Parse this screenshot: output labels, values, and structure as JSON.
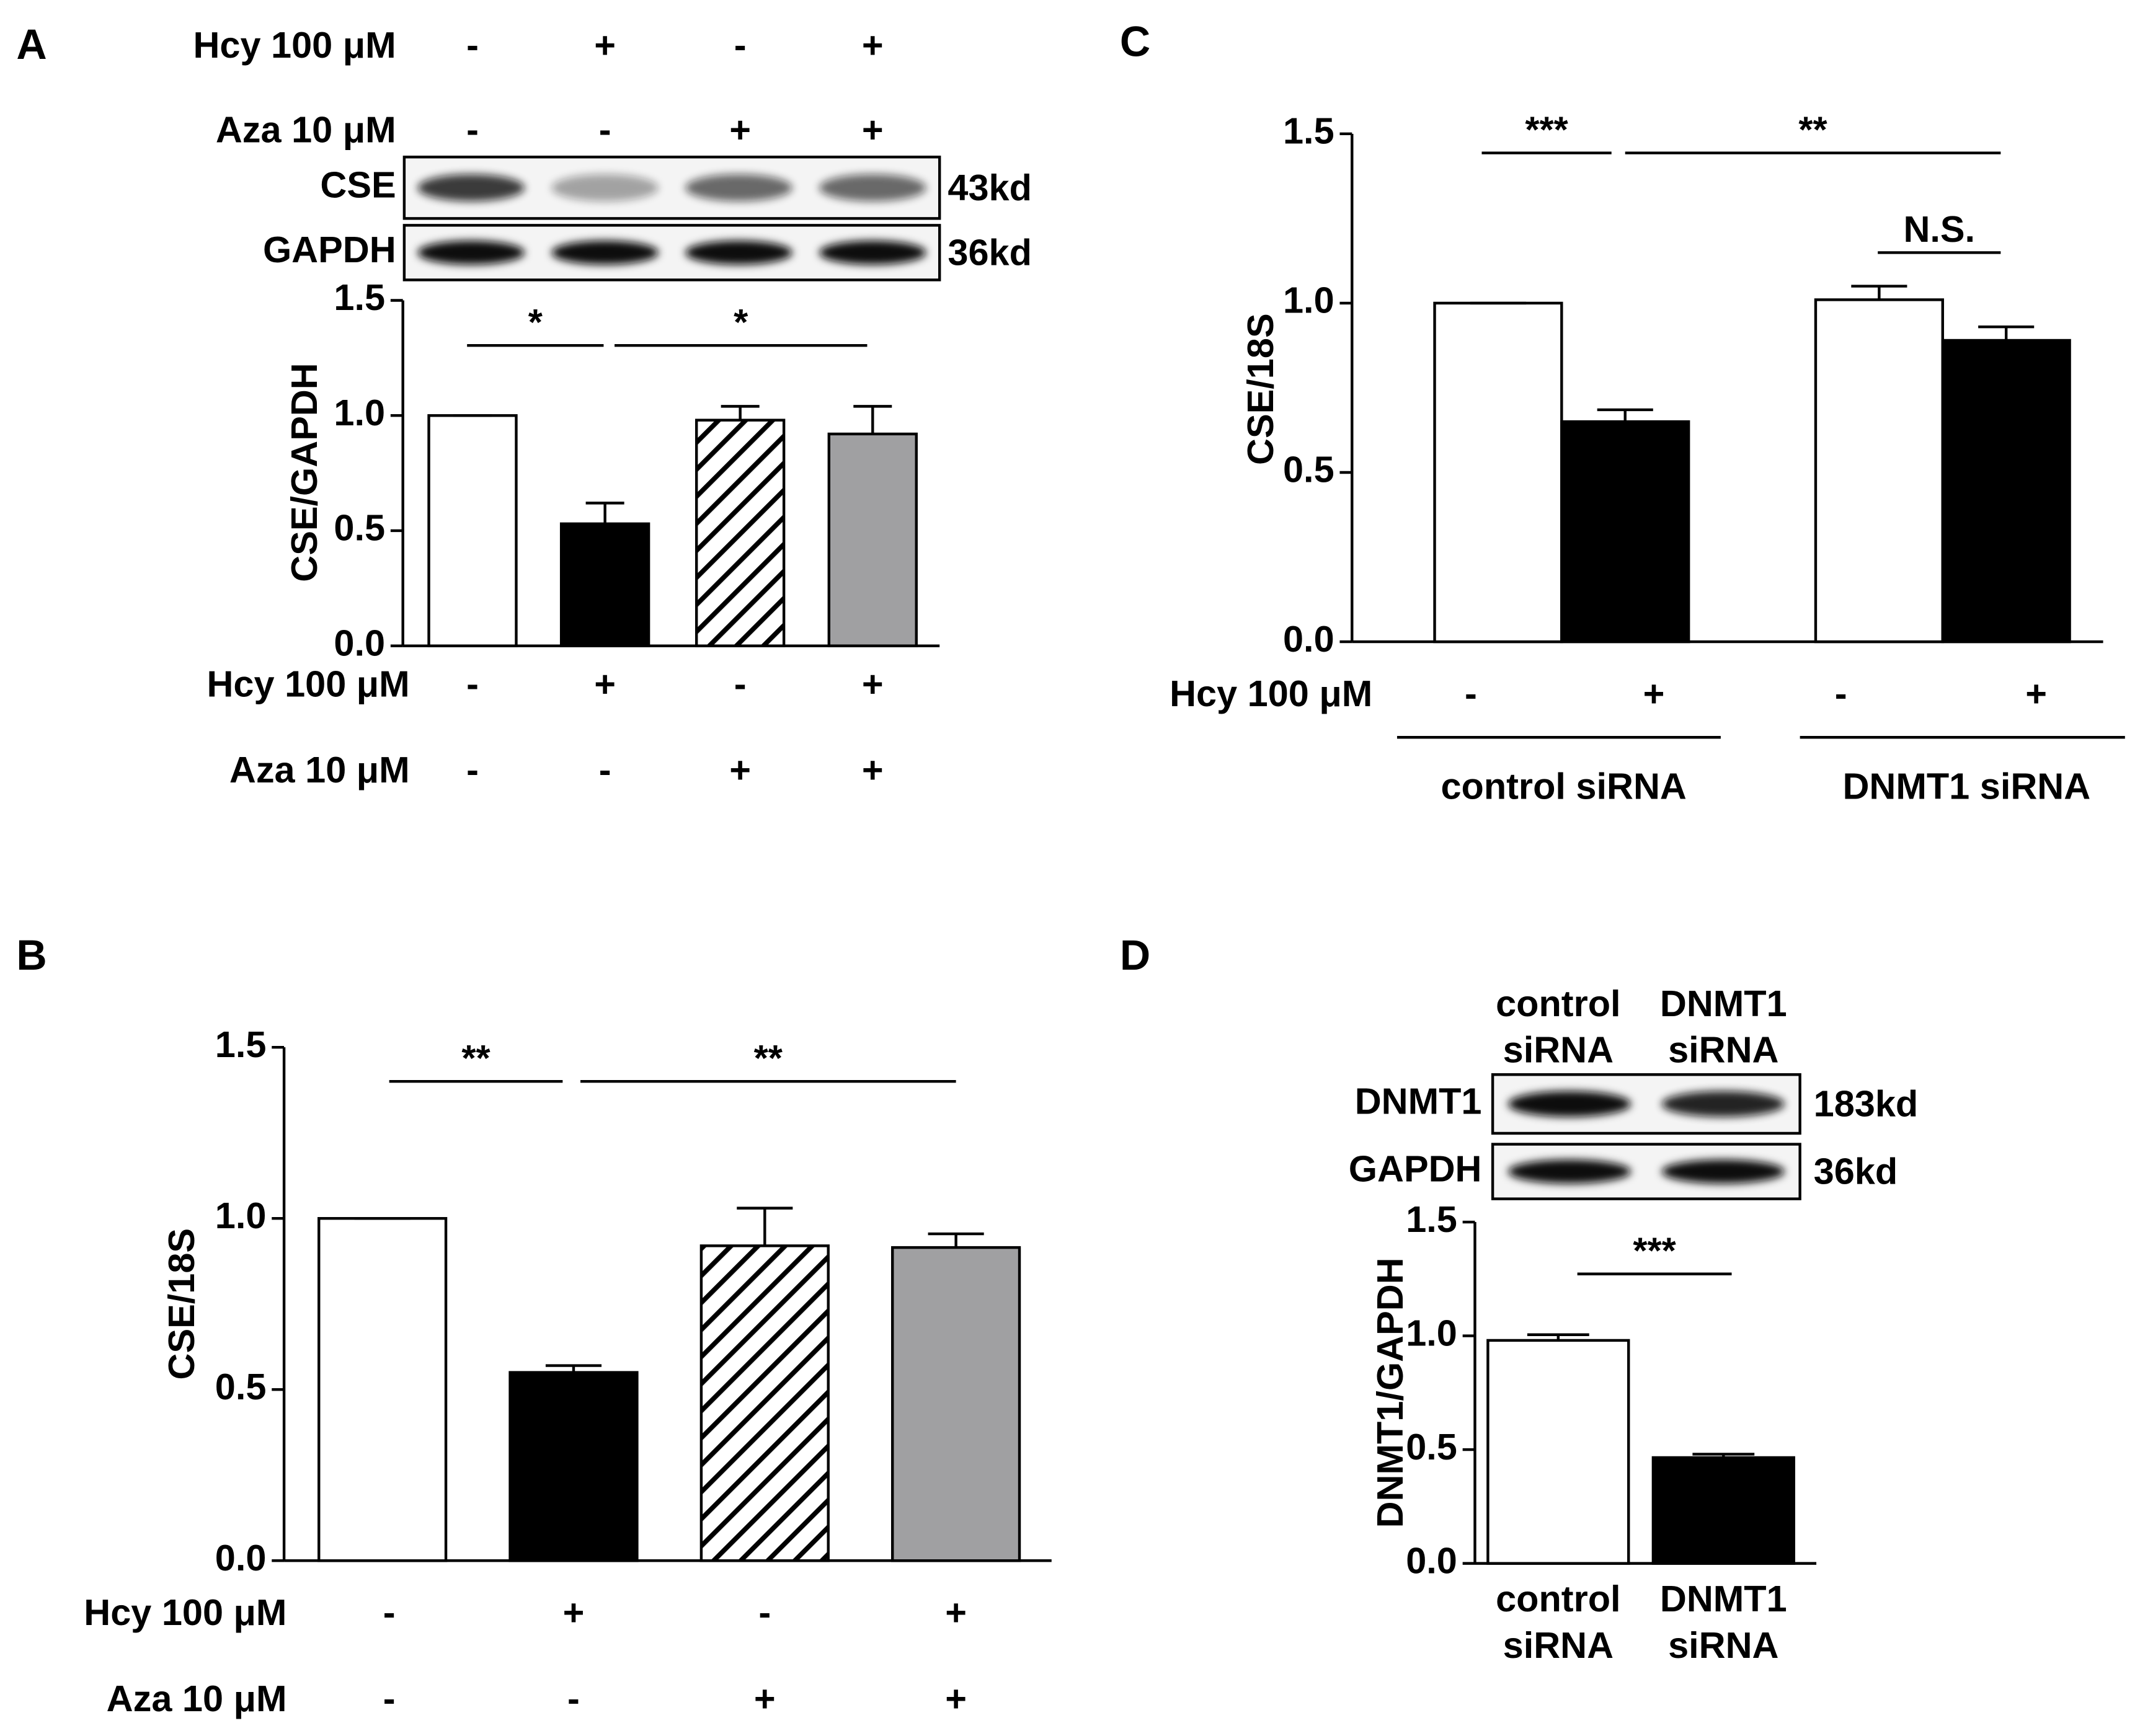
{
  "chart_data": [
    {
      "panel": "A",
      "type": "bar",
      "ylabel": "CSE/GAPDH",
      "blot_conditions": [
        {
          "label": "Hcy 100 μM",
          "signs": [
            "-",
            "+",
            "-",
            "+"
          ]
        },
        {
          "label": "Aza 10 μM",
          "signs": [
            "-",
            "-",
            "+",
            "+"
          ]
        }
      ],
      "blot": [
        {
          "name": "CSE",
          "size": "43kd"
        },
        {
          "name": "GAPDH",
          "size": "36kd"
        }
      ],
      "values": [
        1.0,
        0.53,
        0.98,
        0.92
      ],
      "errors": [
        0,
        0.09,
        0.06,
        0.12
      ],
      "colors": [
        "#ffffff",
        "#000000",
        "#ffffff",
        "#a0a0a2"
      ],
      "hatched": [
        false,
        false,
        true,
        false
      ],
      "ylim": [
        0,
        1.5
      ],
      "yticks": [
        {
          "value": 0,
          "label": "0.0"
        },
        0.5,
        {
          "value": 1,
          "label": "1.0"
        },
        1.5
      ],
      "significance": [
        "*",
        "*"
      ],
      "conditions": [
        {
          "label": "Hcy  100 μM",
          "signs": [
            "-",
            "+",
            "-",
            "+"
          ]
        },
        {
          "label": "Aza  10 μM",
          "signs": [
            "-",
            "-",
            "+",
            "+"
          ]
        }
      ]
    },
    {
      "panel": "B",
      "type": "bar",
      "ylabel": "CSE/18S",
      "values": [
        1.0,
        0.55,
        0.92,
        0.915
      ],
      "errors": [
        0,
        0.02,
        0.11,
        0.04
      ],
      "colors": [
        "#ffffff",
        "#000000",
        "#ffffff",
        "#a0a0a2"
      ],
      "hatched": [
        false,
        false,
        true,
        false
      ],
      "ylim": [
        0,
        1.5
      ],
      "yticks": [
        {
          "value": 0,
          "label": "0.0"
        },
        0.5,
        {
          "value": 1,
          "label": "1.0"
        },
        1.5
      ],
      "significance": [
        "**",
        "**"
      ],
      "conditions": [
        {
          "label": "Hcy  100 μM",
          "signs": [
            "-",
            "+",
            "-",
            "+"
          ]
        },
        {
          "label": "Aza  10 μM",
          "signs": [
            "-",
            "-",
            "+",
            "+"
          ]
        }
      ]
    },
    {
      "panel": "C",
      "type": "bar",
      "ylabel": "CSE/18S",
      "values": [
        1.0,
        0.65,
        1.01,
        0.89
      ],
      "errors": [
        0,
        0.035,
        0.04,
        0.04
      ],
      "colors": [
        "#ffffff",
        "#000000",
        "#ffffff",
        "#000000"
      ],
      "hatched": [
        false,
        false,
        false,
        false
      ],
      "ylim": [
        0,
        1.5
      ],
      "yticks": [
        {
          "value": 0,
          "label": "0.0"
        },
        0.5,
        {
          "value": 1,
          "label": "1.0"
        },
        1.5
      ],
      "significance": [
        "***",
        "**",
        "N.S."
      ],
      "conditions": [
        {
          "label": "Hcy 100 μM",
          "signs": [
            "-",
            "+",
            "-",
            "+"
          ]
        }
      ],
      "groups": [
        "control siRNA",
        "DNMT1 siRNA"
      ]
    },
    {
      "panel": "D",
      "type": "bar",
      "ylabel": "DNMT1/GAPDH",
      "blot": [
        {
          "name": "DNMT1",
          "size": "183kd"
        },
        {
          "name": "GAPDH",
          "size": "36kd"
        }
      ],
      "categories": [
        [
          "control",
          "siRNA"
        ],
        [
          "DNMT1",
          "siRNA"
        ]
      ],
      "values": [
        0.98,
        0.465
      ],
      "errors": [
        0.025,
        0.015
      ],
      "colors": [
        "#ffffff",
        "#000000"
      ],
      "hatched": [
        false,
        false
      ],
      "ylim": [
        0,
        1.5
      ],
      "yticks": [
        {
          "value": 0,
          "label": "0.0"
        },
        0.5,
        {
          "value": 1,
          "label": "1.0"
        },
        1.5
      ],
      "significance": [
        "***"
      ]
    }
  ]
}
